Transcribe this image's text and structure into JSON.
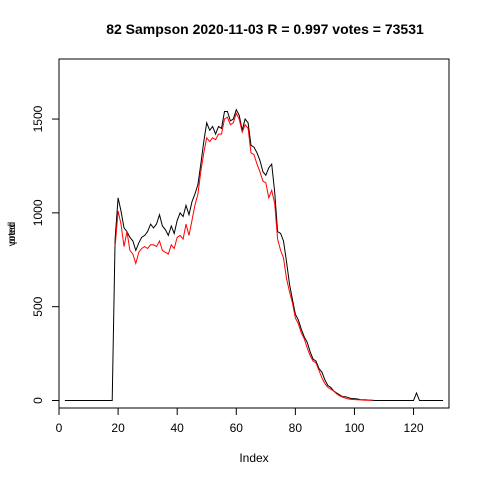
{
  "chart_data": {
    "type": "line",
    "title": "82 Sampson 2020-11-03 R = 0.997 votes = 73531",
    "xlabel": "Index",
    "ylabel_overlap": [
      "voted",
      "pred"
    ],
    "xlim": [
      0,
      132
    ],
    "ylim": [
      -40,
      1820
    ],
    "xticks": [
      0,
      20,
      40,
      60,
      80,
      100,
      120
    ],
    "yticks": [
      0,
      500,
      1000,
      1500
    ],
    "grid": false,
    "colors": {
      "voted": "#000000",
      "pred": "#ff0000",
      "axis": "#000000"
    },
    "series": [
      {
        "key": "voted",
        "points": [
          [
            2,
            0
          ],
          [
            18,
            0
          ],
          [
            19,
            860
          ],
          [
            20,
            1080
          ],
          [
            21,
            1010
          ],
          [
            22,
            920
          ],
          [
            23,
            900
          ],
          [
            24,
            870
          ],
          [
            25,
            850
          ],
          [
            26,
            800
          ],
          [
            27,
            840
          ],
          [
            28,
            870
          ],
          [
            29,
            880
          ],
          [
            30,
            900
          ],
          [
            31,
            940
          ],
          [
            32,
            920
          ],
          [
            33,
            940
          ],
          [
            34,
            990
          ],
          [
            35,
            930
          ],
          [
            36,
            910
          ],
          [
            37,
            880
          ],
          [
            38,
            930
          ],
          [
            39,
            890
          ],
          [
            40,
            960
          ],
          [
            41,
            1000
          ],
          [
            42,
            980
          ],
          [
            43,
            1040
          ],
          [
            44,
            990
          ],
          [
            45,
            1060
          ],
          [
            46,
            1100
          ],
          [
            47,
            1150
          ],
          [
            48,
            1260
          ],
          [
            49,
            1380
          ],
          [
            50,
            1480
          ],
          [
            51,
            1440
          ],
          [
            52,
            1460
          ],
          [
            53,
            1420
          ],
          [
            54,
            1460
          ],
          [
            55,
            1450
          ],
          [
            56,
            1540
          ],
          [
            57,
            1540
          ],
          [
            58,
            1490
          ],
          [
            59,
            1500
          ],
          [
            60,
            1550
          ],
          [
            61,
            1520
          ],
          [
            62,
            1440
          ],
          [
            63,
            1500
          ],
          [
            64,
            1480
          ],
          [
            65,
            1360
          ],
          [
            66,
            1350
          ],
          [
            67,
            1320
          ],
          [
            68,
            1280
          ],
          [
            69,
            1220
          ],
          [
            70,
            1200
          ],
          [
            71,
            1240
          ],
          [
            72,
            1260
          ],
          [
            73,
            1110
          ],
          [
            74,
            900
          ],
          [
            75,
            890
          ],
          [
            76,
            850
          ],
          [
            77,
            740
          ],
          [
            78,
            620
          ],
          [
            79,
            540
          ],
          [
            80,
            460
          ],
          [
            81,
            430
          ],
          [
            82,
            380
          ],
          [
            83,
            340
          ],
          [
            84,
            310
          ],
          [
            85,
            260
          ],
          [
            86,
            220
          ],
          [
            87,
            210
          ],
          [
            88,
            170
          ],
          [
            89,
            150
          ],
          [
            90,
            110
          ],
          [
            91,
            80
          ],
          [
            92,
            70
          ],
          [
            93,
            50
          ],
          [
            94,
            40
          ],
          [
            95,
            30
          ],
          [
            96,
            20
          ],
          [
            97,
            20
          ],
          [
            98,
            15
          ],
          [
            99,
            10
          ],
          [
            100,
            10
          ],
          [
            101,
            8
          ],
          [
            102,
            5
          ],
          [
            103,
            4
          ],
          [
            104,
            3
          ],
          [
            105,
            2
          ],
          [
            106,
            1
          ],
          [
            107,
            0
          ],
          [
            110,
            0
          ],
          [
            114,
            0
          ],
          [
            118,
            0
          ],
          [
            119,
            0
          ],
          [
            120,
            0
          ],
          [
            121,
            40
          ],
          [
            122,
            0
          ],
          [
            125,
            0
          ],
          [
            130,
            0
          ]
        ]
      },
      {
        "key": "pred",
        "points": [
          [
            19,
            820
          ],
          [
            20,
            1010
          ],
          [
            21,
            940
          ],
          [
            22,
            820
          ],
          [
            23,
            900
          ],
          [
            24,
            800
          ],
          [
            25,
            780
          ],
          [
            26,
            730
          ],
          [
            27,
            790
          ],
          [
            28,
            810
          ],
          [
            29,
            820
          ],
          [
            30,
            810
          ],
          [
            31,
            830
          ],
          [
            32,
            830
          ],
          [
            33,
            820
          ],
          [
            34,
            850
          ],
          [
            35,
            800
          ],
          [
            36,
            790
          ],
          [
            37,
            780
          ],
          [
            38,
            830
          ],
          [
            39,
            810
          ],
          [
            40,
            870
          ],
          [
            41,
            880
          ],
          [
            42,
            860
          ],
          [
            43,
            940
          ],
          [
            44,
            880
          ],
          [
            45,
            960
          ],
          [
            46,
            1040
          ],
          [
            47,
            1100
          ],
          [
            48,
            1220
          ],
          [
            49,
            1320
          ],
          [
            50,
            1400
          ],
          [
            51,
            1380
          ],
          [
            52,
            1400
          ],
          [
            53,
            1390
          ],
          [
            54,
            1420
          ],
          [
            55,
            1420
          ],
          [
            56,
            1500
          ],
          [
            57,
            1510
          ],
          [
            58,
            1470
          ],
          [
            59,
            1480
          ],
          [
            60,
            1530
          ],
          [
            61,
            1500
          ],
          [
            62,
            1430
          ],
          [
            63,
            1470
          ],
          [
            64,
            1450
          ],
          [
            65,
            1320
          ],
          [
            66,
            1310
          ],
          [
            67,
            1260
          ],
          [
            68,
            1220
          ],
          [
            69,
            1170
          ],
          [
            70,
            1160
          ],
          [
            71,
            1080
          ],
          [
            72,
            1120
          ],
          [
            73,
            1050
          ],
          [
            74,
            860
          ],
          [
            75,
            800
          ],
          [
            76,
            760
          ],
          [
            77,
            650
          ],
          [
            78,
            580
          ],
          [
            79,
            520
          ],
          [
            80,
            440
          ],
          [
            81,
            410
          ],
          [
            82,
            360
          ],
          [
            83,
            330
          ],
          [
            84,
            280
          ],
          [
            85,
            240
          ],
          [
            86,
            210
          ],
          [
            87,
            200
          ],
          [
            88,
            160
          ],
          [
            89,
            120
          ],
          [
            90,
            90
          ],
          [
            91,
            70
          ],
          [
            92,
            60
          ],
          [
            93,
            50
          ],
          [
            94,
            35
          ],
          [
            95,
            25
          ],
          [
            96,
            18
          ],
          [
            97,
            12
          ],
          [
            98,
            8
          ],
          [
            99,
            6
          ],
          [
            100,
            5
          ],
          [
            101,
            4
          ],
          [
            102,
            3
          ],
          [
            103,
            2
          ],
          [
            104,
            1
          ],
          [
            105,
            1
          ],
          [
            106,
            0
          ]
        ]
      }
    ]
  }
}
